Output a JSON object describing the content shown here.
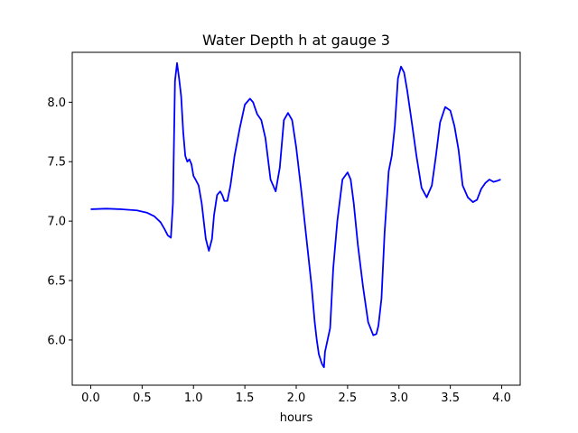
{
  "chart_data": {
    "type": "line",
    "title": "Water Depth h at gauge 3",
    "xlabel": "hours",
    "ylabel": "",
    "xlim": [
      -0.18,
      4.18
    ],
    "ylim": [
      5.62,
      8.42
    ],
    "xticks": [
      0.0,
      0.5,
      1.0,
      1.5,
      2.0,
      2.5,
      3.0,
      3.5,
      4.0
    ],
    "xtick_labels": [
      "0.0",
      "0.5",
      "1.0",
      "1.5",
      "2.0",
      "2.5",
      "3.0",
      "3.5",
      "4.0"
    ],
    "yticks": [
      6.0,
      6.5,
      7.0,
      7.5,
      8.0
    ],
    "ytick_labels": [
      "6.0",
      "6.5",
      "7.0",
      "7.5",
      "8.0"
    ],
    "grid": false,
    "series": [
      {
        "color": "#0000ff",
        "x": [
          0.0,
          0.15,
          0.3,
          0.45,
          0.55,
          0.62,
          0.68,
          0.72,
          0.75,
          0.78,
          0.8,
          0.82,
          0.84,
          0.86,
          0.88,
          0.9,
          0.92,
          0.94,
          0.96,
          0.98,
          1.0,
          1.02,
          1.05,
          1.08,
          1.12,
          1.15,
          1.18,
          1.2,
          1.23,
          1.26,
          1.28,
          1.3,
          1.33,
          1.36,
          1.4,
          1.45,
          1.5,
          1.55,
          1.58,
          1.62,
          1.66,
          1.7,
          1.75,
          1.8,
          1.84,
          1.88,
          1.92,
          1.96,
          2.0,
          2.05,
          2.1,
          2.15,
          2.18,
          2.2,
          2.22,
          2.25,
          2.27,
          2.28,
          2.3,
          2.33,
          2.36,
          2.4,
          2.45,
          2.5,
          2.53,
          2.56,
          2.6,
          2.65,
          2.7,
          2.75,
          2.78,
          2.8,
          2.83,
          2.86,
          2.9,
          2.93,
          2.96,
          2.99,
          3.02,
          3.05,
          3.08,
          3.1,
          3.13,
          3.17,
          3.22,
          3.27,
          3.32,
          3.36,
          3.4,
          3.45,
          3.5,
          3.54,
          3.58,
          3.62,
          3.67,
          3.72,
          3.76,
          3.8,
          3.84,
          3.88,
          3.92,
          3.96,
          3.99
        ],
        "y": [
          7.1,
          7.105,
          7.1,
          7.09,
          7.07,
          7.04,
          6.99,
          6.93,
          6.88,
          6.86,
          7.15,
          8.18,
          8.33,
          8.2,
          8.05,
          7.75,
          7.55,
          7.5,
          7.52,
          7.48,
          7.38,
          7.35,
          7.3,
          7.15,
          6.85,
          6.75,
          6.85,
          7.05,
          7.22,
          7.25,
          7.22,
          7.17,
          7.17,
          7.3,
          7.55,
          7.78,
          7.98,
          8.03,
          8.0,
          7.9,
          7.85,
          7.7,
          7.35,
          7.25,
          7.45,
          7.85,
          7.91,
          7.85,
          7.62,
          7.25,
          6.85,
          6.45,
          6.15,
          6.0,
          5.88,
          5.8,
          5.77,
          5.9,
          5.98,
          6.1,
          6.6,
          7.0,
          7.35,
          7.41,
          7.35,
          7.15,
          6.8,
          6.45,
          6.15,
          6.04,
          6.05,
          6.12,
          6.35,
          6.9,
          7.42,
          7.55,
          7.8,
          8.2,
          8.3,
          8.25,
          8.1,
          7.98,
          7.8,
          7.55,
          7.28,
          7.2,
          7.3,
          7.55,
          7.83,
          7.96,
          7.93,
          7.8,
          7.6,
          7.3,
          7.2,
          7.16,
          7.18,
          7.27,
          7.32,
          7.35,
          7.33,
          7.34,
          7.35
        ]
      }
    ]
  }
}
